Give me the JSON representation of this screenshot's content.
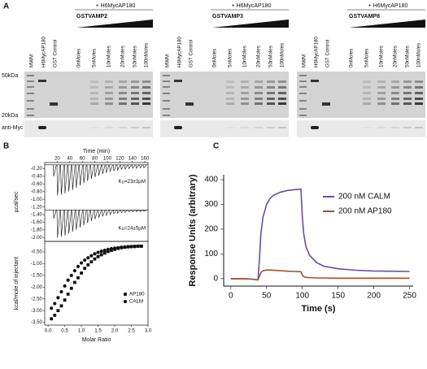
{
  "figure": {
    "panel_a": {
      "label": "A",
      "gels": [
        {
          "treatment": "+ H6MycAP180",
          "titrant": "GSTVAMP2",
          "lanes": [
            "MWM",
            "H6MycAP180",
            "GST Control",
            "0nMoles",
            "5nMoles",
            "10nMoles",
            "20nMoles",
            "50nMoles",
            "100nMoles"
          ]
        },
        {
          "treatment": "+ H6MycAP180",
          "titrant": "GSTVAMP3",
          "lanes": [
            "MWM",
            "H6MycAP180",
            "GST Control",
            "0nMoles",
            "5nMoles",
            "10nMoles",
            "20nMoles",
            "50nMoles",
            "100nMoles"
          ]
        },
        {
          "treatment": "+ H6MycAP180",
          "titrant": "GSTVAMP8",
          "lanes": [
            "MWM",
            "H6MycAP180",
            "GST Control",
            "0nMoles",
            "5nMoles",
            "10nMoles",
            "20nMoles",
            "50nMoles",
            "100nMoles"
          ]
        }
      ],
      "markers": [
        "50kDa",
        "20kDa"
      ],
      "blot": "anti-Myc"
    },
    "panel_b": {
      "label": "B"
    },
    "panel_c": {
      "label": "C"
    }
  },
  "chart_data": [
    {
      "type": "itc_raw",
      "xlabel": "Time (min)",
      "ylabel": "µcal/sec",
      "xlim": [
        0,
        165
      ],
      "xticks": [
        20,
        40,
        60,
        80,
        100,
        120,
        140,
        160
      ],
      "ylim": [
        -2.1,
        -0.04
      ],
      "yticks": [
        {
          "value": -0.2,
          "label": "-0.20"
        },
        {
          "value": -0.4,
          "label": "-0.40"
        },
        {
          "value": -0.6,
          "label": "-0.60"
        },
        {
          "value": -0.8,
          "label": "-0.80"
        },
        {
          "value": -1.0,
          "label": "-1.00"
        },
        {
          "value": -1.2,
          "label": "-1.20"
        },
        {
          "value": -1.4,
          "label": "-1.40"
        },
        {
          "value": -1.6,
          "label": "-1.60"
        },
        {
          "value": -1.8,
          "label": "-1.80"
        },
        {
          "value": -2.0,
          "label": "-2.00"
        }
      ],
      "x": [
        14,
        20,
        26,
        32,
        38,
        44,
        50,
        56,
        62,
        68,
        74,
        80,
        86,
        92,
        98,
        104,
        110,
        116,
        122,
        128,
        134,
        140,
        146,
        152,
        158
      ],
      "series": [
        {
          "color": "#111111",
          "baseline": -0.1,
          "values": [
            -0.4,
            -0.9,
            -0.88,
            -0.85,
            -0.8,
            -0.76,
            -0.7,
            -0.64,
            -0.58,
            -0.52,
            -0.47,
            -0.42,
            -0.38,
            -0.34,
            -0.31,
            -0.28,
            -0.26,
            -0.24,
            -0.22,
            -0.21,
            -0.2,
            -0.19,
            -0.19,
            -0.18,
            -0.18
          ],
          "annotation": {
            "symbol": "K",
            "subscript": "D",
            "text": "=23±3µM"
          }
        },
        {
          "color": "#111111",
          "baseline": -1.28,
          "values": [
            -1.5,
            -2.0,
            -1.98,
            -1.95,
            -1.9,
            -1.85,
            -1.8,
            -1.74,
            -1.68,
            -1.62,
            -1.57,
            -1.52,
            -1.48,
            -1.45,
            -1.42,
            -1.4,
            -1.38,
            -1.36,
            -1.35,
            -1.34,
            -1.33,
            -1.33,
            -1.32,
            -1.32,
            -1.31
          ],
          "annotation": {
            "symbol": "K",
            "subscript": "D",
            "text": "=24±5µM"
          }
        }
      ]
    },
    {
      "type": "scatter",
      "xlabel": "Molar Ratio",
      "ylabel": "kcal/mole of injectant",
      "xlim": [
        -0.1,
        3.0
      ],
      "xticks": [
        {
          "value": 0,
          "label": "0.0"
        },
        0.5,
        {
          "value": 1,
          "label": "1.0"
        },
        1.5,
        {
          "value": 2,
          "label": "2.0"
        },
        2.5,
        {
          "value": 3,
          "label": "3.0"
        }
      ],
      "ylim": [
        -3.62,
        -0.05
      ],
      "yticks": [
        {
          "value": -0.5,
          "label": "-0.50"
        },
        {
          "value": -1.0,
          "label": "-1.00"
        },
        {
          "value": -1.5,
          "label": "-1.50"
        },
        {
          "value": -2.0,
          "label": "-2.00"
        },
        {
          "value": -2.5,
          "label": "-2.50"
        },
        {
          "value": -3.0,
          "label": "-3.00"
        },
        {
          "value": -3.5,
          "label": "-3.50"
        }
      ],
      "x": [
        0.1,
        0.2,
        0.3,
        0.4,
        0.5,
        0.6,
        0.7,
        0.8,
        0.9,
        1.0,
        1.1,
        1.2,
        1.3,
        1.4,
        1.5,
        1.6,
        1.7,
        1.8,
        1.9,
        2.0,
        2.1,
        2.2,
        2.3,
        2.4,
        2.5,
        2.6,
        2.7,
        2.8
      ],
      "legend": "right",
      "series": [
        {
          "name": "AP180",
          "marker": "square",
          "color": "#111111",
          "values": [
            -3.35,
            -3.2,
            -3.0,
            -2.8,
            -2.55,
            -2.3,
            -2.05,
            -1.8,
            -1.6,
            -1.4,
            -1.2,
            -1.05,
            -0.92,
            -0.8,
            -0.7,
            -0.62,
            -0.55,
            -0.48,
            -0.43,
            -0.39,
            -0.35,
            -0.32,
            -0.3,
            -0.28,
            -0.27,
            -0.26,
            -0.25,
            -0.25
          ]
        },
        {
          "name": "CALM",
          "marker": "circle",
          "color": "#111111",
          "values": [
            -2.9,
            -2.7,
            -2.45,
            -2.2,
            -1.95,
            -1.7,
            -1.5,
            -1.3,
            -1.12,
            -0.97,
            -0.85,
            -0.75,
            -0.66,
            -0.58,
            -0.52,
            -0.47,
            -0.43,
            -0.39,
            -0.36,
            -0.34,
            -0.32,
            -0.3,
            -0.29,
            -0.28,
            -0.27,
            -0.27,
            -0.26,
            -0.26
          ]
        }
      ]
    },
    {
      "type": "line",
      "xlabel": "Time (s)",
      "ylabel": "Response Units (arbitrary)",
      "xlim": [
        -10,
        255
      ],
      "xticks": [
        0,
        50,
        100,
        150,
        200,
        250
      ],
      "ylim": [
        -30,
        420
      ],
      "yticks": [
        0,
        100,
        200,
        300,
        400
      ],
      "x": [
        0,
        10,
        20,
        30,
        38,
        40,
        42,
        45,
        50,
        55,
        60,
        70,
        80,
        90,
        98,
        100,
        102,
        105,
        110,
        120,
        130,
        150,
        175,
        200,
        225,
        250
      ],
      "legend": "upper right",
      "series": [
        {
          "name": "200 nM CALM",
          "color": "#6a4fa0",
          "values": [
            0,
            0,
            0,
            -2,
            -5,
            80,
            180,
            250,
            300,
            325,
            338,
            350,
            357,
            360,
            362,
            250,
            180,
            130,
            95,
            65,
            50,
            40,
            34,
            31,
            30,
            29
          ]
        },
        {
          "name": "200 nM AP180",
          "color": "#a0522d",
          "values": [
            0,
            0,
            0,
            -2,
            -5,
            10,
            25,
            32,
            35,
            35,
            34,
            32,
            30,
            29,
            28,
            15,
            8,
            5,
            4,
            3,
            3,
            2,
            2,
            2,
            2,
            2
          ]
        }
      ]
    }
  ]
}
